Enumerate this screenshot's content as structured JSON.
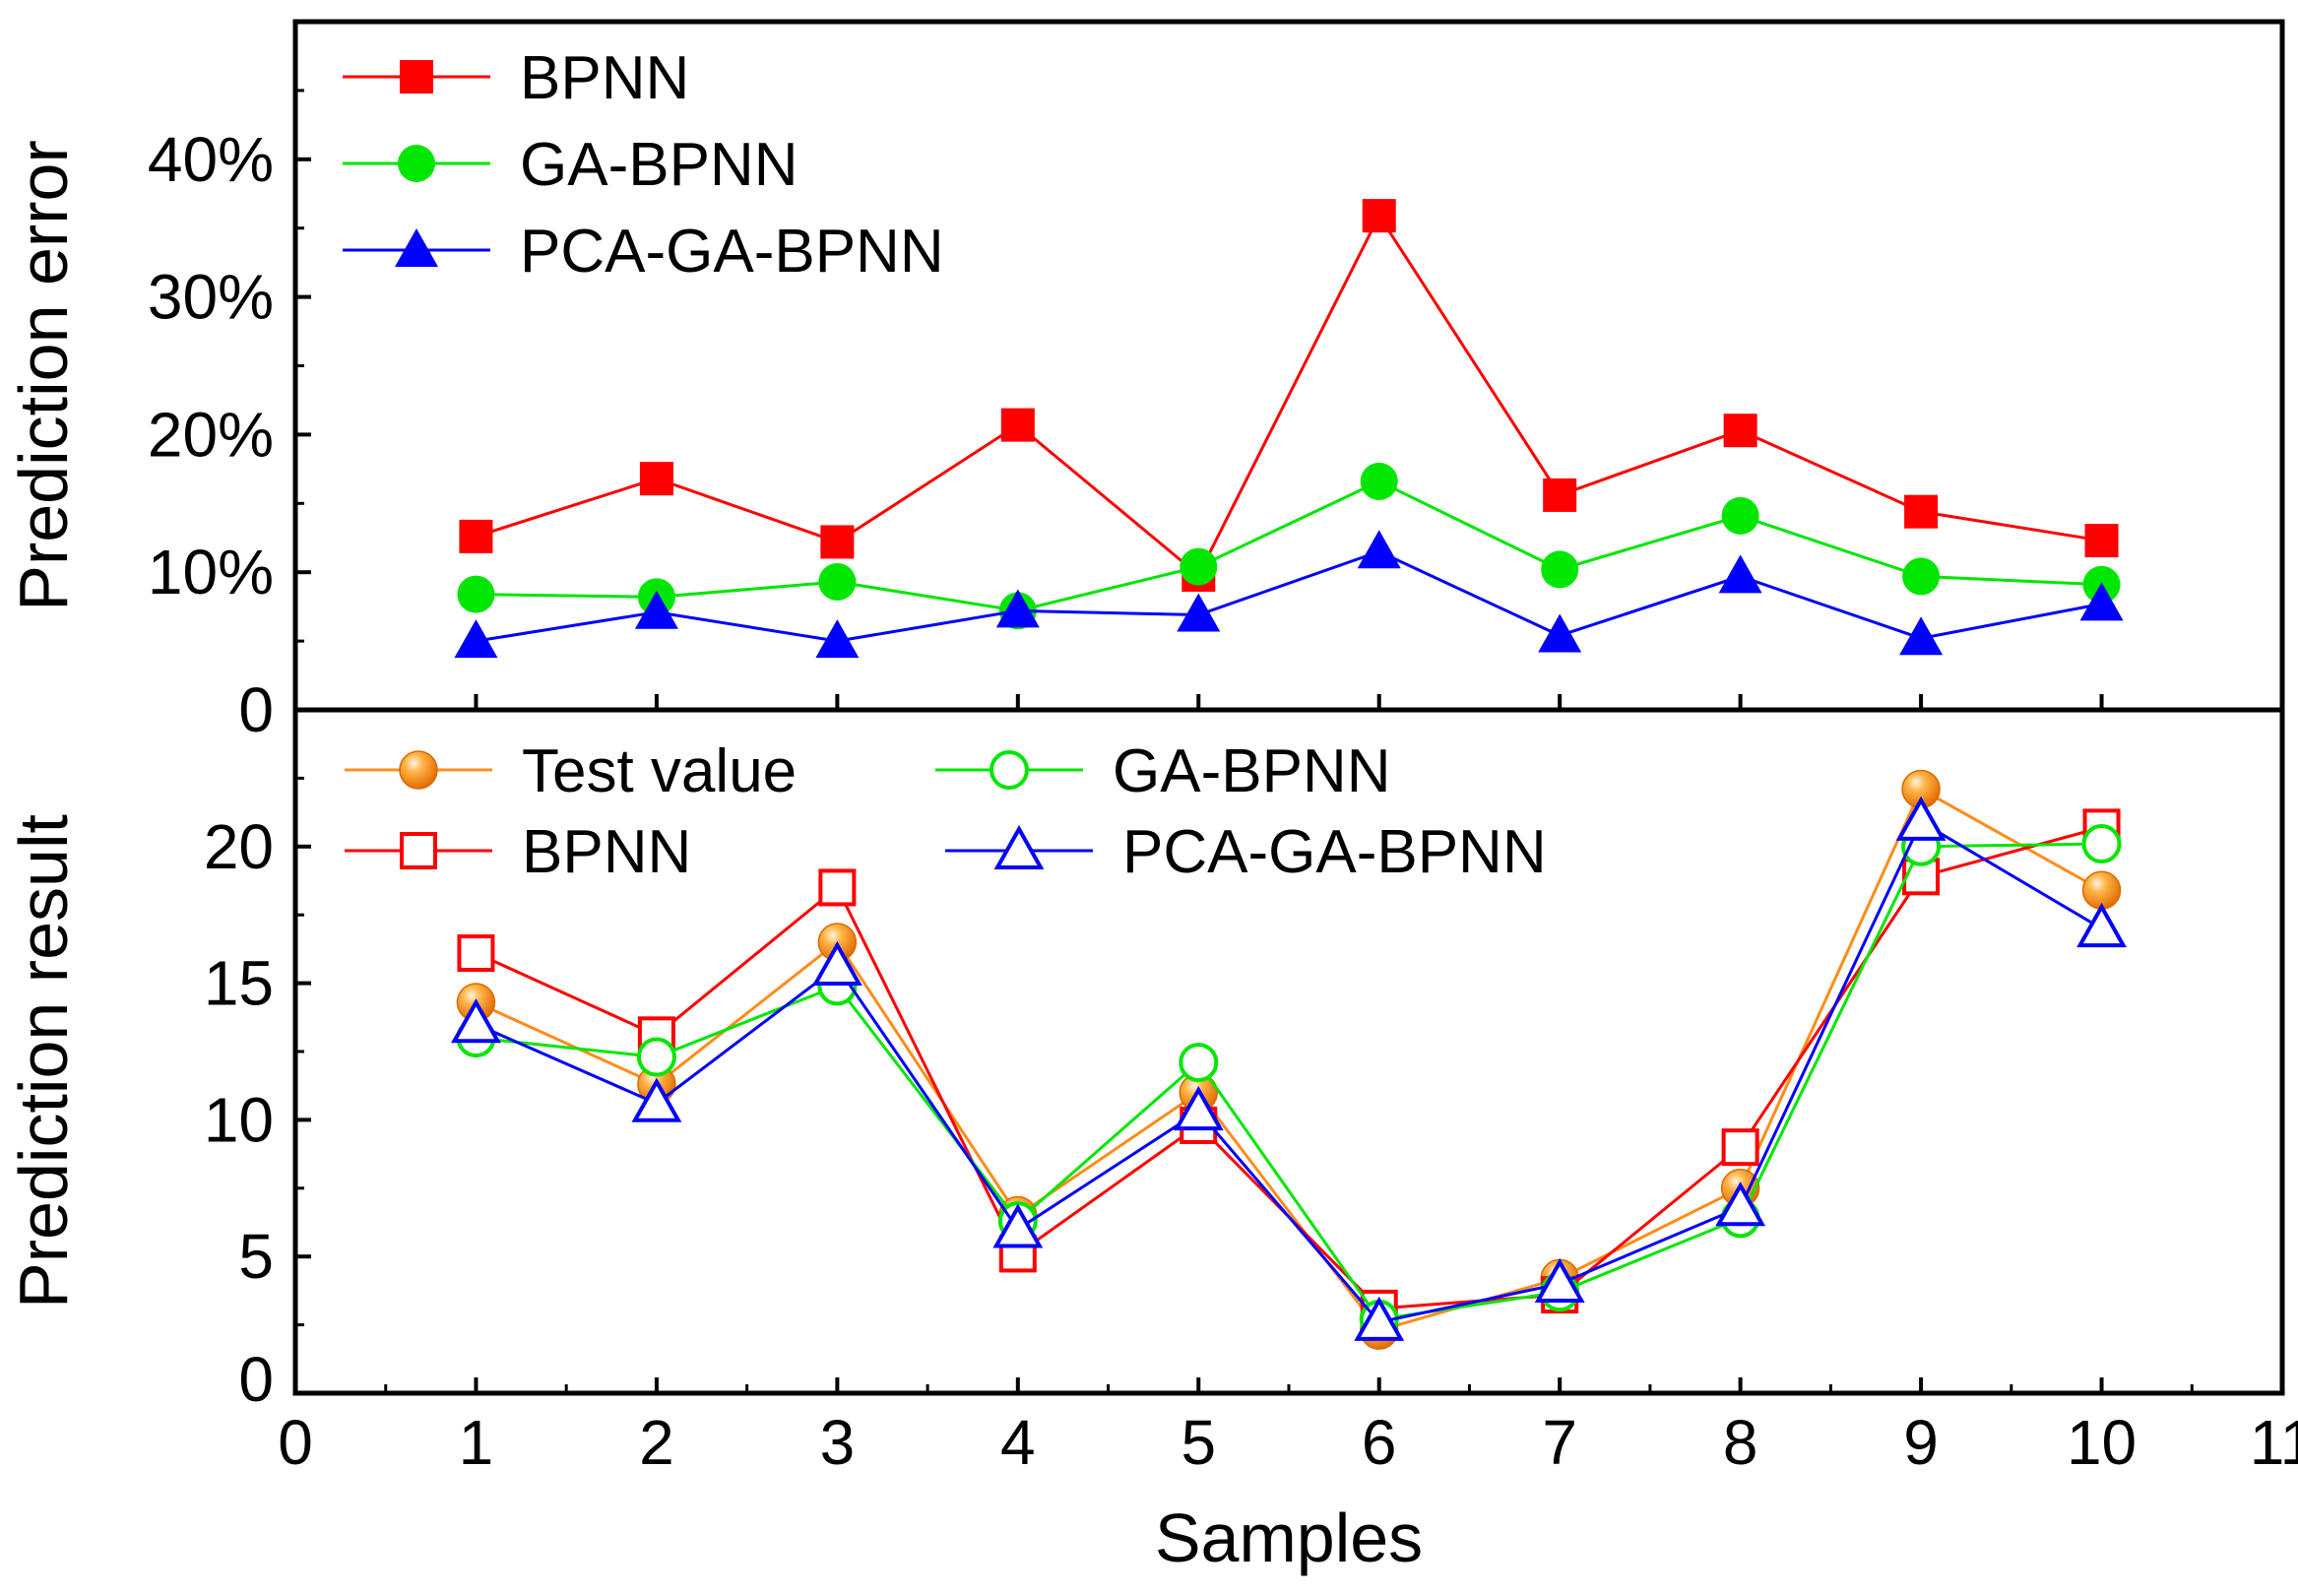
{
  "chart_data": [
    {
      "type": "line",
      "panel": "top",
      "ylabel": "Prediction error",
      "xlim": [
        0,
        11
      ],
      "ylim": [
        0,
        50
      ],
      "yticks": [
        0,
        10,
        20,
        30,
        40
      ],
      "ytick_labels": [
        "0",
        "10%",
        "20%",
        "30%",
        "40%"
      ],
      "legend_position": "top-left",
      "x": [
        1,
        2,
        3,
        4,
        5,
        6,
        7,
        8,
        9,
        10
      ],
      "series": [
        {
          "name": "BPNN",
          "color": "#ff0000",
          "marker": "square-filled",
          "values": [
            12.6,
            16.8,
            12.2,
            20.7,
            9.8,
            35.9,
            15.6,
            20.3,
            14.4,
            12.3
          ]
        },
        {
          "name": "GA-BPNN",
          "color": "#00e600",
          "marker": "circle-filled",
          "values": [
            8.4,
            8.2,
            9.3,
            7.2,
            10.4,
            16.6,
            10.2,
            14.1,
            9.7,
            9.1
          ]
        },
        {
          "name": "PCA-GA-BPNN",
          "color": "#0000ff",
          "marker": "triangle-filled",
          "values": [
            5.0,
            7.1,
            5.0,
            7.2,
            6.9,
            11.5,
            5.4,
            9.7,
            5.2,
            7.7
          ]
        }
      ]
    },
    {
      "type": "line",
      "panel": "bottom",
      "xlabel": "Samples",
      "ylabel": "Prediction result",
      "xlim": [
        0,
        11
      ],
      "ylim": [
        0,
        25
      ],
      "xticks": [
        0,
        1,
        2,
        3,
        4,
        5,
        6,
        7,
        8,
        9,
        10,
        11
      ],
      "xtick_labels": [
        "0",
        "1",
        "2",
        "3",
        "4",
        "5",
        "6",
        "7",
        "8",
        "9",
        "10",
        "11"
      ],
      "yticks": [
        0,
        5,
        10,
        15,
        20
      ],
      "ytick_labels": [
        "0",
        "5",
        "10",
        "15",
        "20"
      ],
      "legend_position": "top (two columns)",
      "x": [
        1,
        2,
        3,
        4,
        5,
        6,
        7,
        8,
        9,
        10
      ],
      "series": [
        {
          "name": "Test value",
          "color": "#ff8c1a",
          "marker": "sphere-filled",
          "values": [
            14.3,
            11.3,
            16.5,
            6.5,
            11.0,
            2.3,
            4.2,
            7.5,
            22.1,
            18.4
          ]
        },
        {
          "name": "BPNN",
          "color": "#ff0000",
          "marker": "square-open",
          "values": [
            16.1,
            13.1,
            18.5,
            5.1,
            9.8,
            3.1,
            3.6,
            9.0,
            18.9,
            20.7
          ]
        },
        {
          "name": "GA-BPNN",
          "color": "#00e600",
          "marker": "circle-open",
          "values": [
            13.0,
            12.3,
            14.9,
            6.3,
            12.1,
            2.7,
            3.7,
            6.4,
            20.0,
            20.1
          ]
        },
        {
          "name": "PCA-GA-BPNN",
          "color": "#0000ff",
          "marker": "triangle-open",
          "values": [
            13.5,
            10.6,
            15.6,
            6.0,
            10.3,
            2.6,
            4.0,
            6.8,
            20.9,
            17.0
          ]
        }
      ]
    }
  ]
}
